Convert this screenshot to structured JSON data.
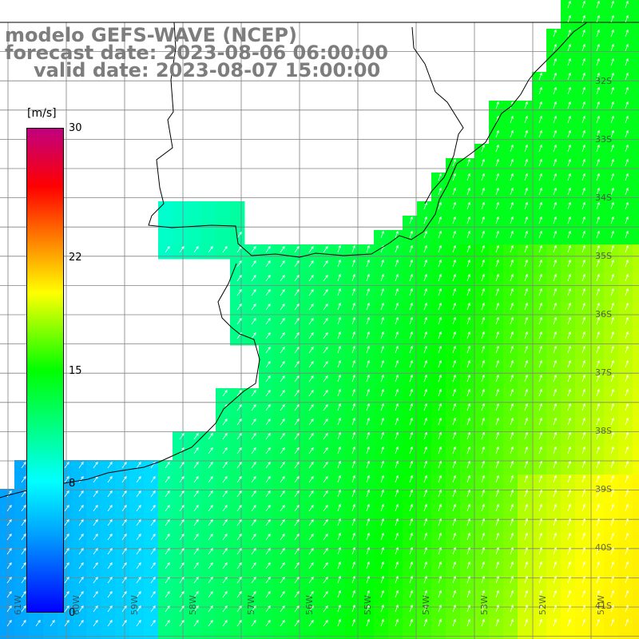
{
  "header": {
    "line1": "modelo GEFS-WAVE (NCEP)",
    "line2": "forecast date: 2023-08-06 06:00:00",
    "line3": "valid date: 2023-08-07 15:00:00"
  },
  "colorbar": {
    "unit": "[m/s]",
    "ticks": [
      {
        "label": "30",
        "value": 30
      },
      {
        "label": "22",
        "value": 22
      },
      {
        "label": "15",
        "value": 15
      },
      {
        "label": "8",
        "value": 8
      },
      {
        "label": "0",
        "value": 0
      }
    ],
    "min": 0,
    "max": 30,
    "colors": [
      "#0000ff",
      "#00a0ff",
      "#00ffff",
      "#00ff00",
      "#ffff00",
      "#ff8000",
      "#ff0000",
      "#c00080"
    ]
  },
  "map": {
    "lat_labels": [
      "32S",
      "33S",
      "34S",
      "35S",
      "36S",
      "37S",
      "38S",
      "39S",
      "40S",
      "41S"
    ],
    "lon_labels": [
      "61W",
      "60W",
      "59W",
      "58W",
      "57W",
      "56W",
      "55W",
      "54W",
      "53W",
      "52W",
      "51W"
    ],
    "land_color": "#ffffff",
    "grid_color": "#808080",
    "coast_color": "#000000",
    "arrow_color": "#ffffff"
  }
}
